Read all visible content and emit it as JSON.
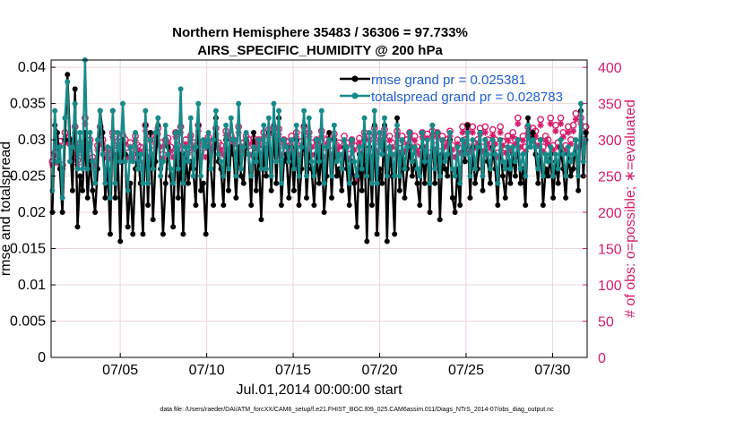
{
  "chart_data": {
    "type": "line",
    "title_line1": "Northern Hemisphere 35483 / 36306 = 97.733%",
    "title_line2": "AIRS_SPECIFIC_HUMIDITY @ 200 hPa",
    "xlabel": "Jul.01,2014 00:00:00 start",
    "ylabel_left": "rmse and totalspread",
    "ylabel_right": "# of obs: o=possible; ∗=evaluated",
    "x_ticks": [
      "07/05",
      "07/10",
      "07/15",
      "07/20",
      "07/25",
      "07/30"
    ],
    "x_tick_days": [
      5,
      10,
      15,
      20,
      25,
      30
    ],
    "xlim": [
      1,
      32
    ],
    "ylim_left": [
      0,
      0.041
    ],
    "ylim_right": [
      0,
      410
    ],
    "y_ticks_left": [
      "0",
      "0.005",
      "0.01",
      "0.015",
      "0.02",
      "0.025",
      "0.03",
      "0.035",
      "0.04"
    ],
    "y_ticks_right": [
      "0",
      "50",
      "100",
      "150",
      "200",
      "250",
      "300",
      "350",
      "400"
    ],
    "colors": {
      "rmse": "#000000",
      "spread": "#178a8a",
      "obs": "#d61c6b",
      "grid": "#eed4da",
      "legend_text": "#1f5fd1"
    },
    "series": [
      {
        "name": "rmse grand pr = 0.025381",
        "axis": "left",
        "values": [
          0.02,
          0.032,
          0.031,
          0.026,
          0.02,
          0.03,
          0.039,
          0.03,
          0.023,
          0.037,
          0.018,
          0.025,
          0.023,
          0.031,
          0.022,
          0.027,
          0.023,
          0.02,
          0.026,
          0.034,
          0.031,
          0.022,
          0.026,
          0.017,
          0.034,
          0.022,
          0.028,
          0.016,
          0.03,
          0.028,
          0.018,
          0.024,
          0.017,
          0.026,
          0.028,
          0.024,
          0.017,
          0.032,
          0.021,
          0.031,
          0.019,
          0.027,
          0.032,
          0.026,
          0.017,
          0.024,
          0.029,
          0.025,
          0.018,
          0.031,
          0.022,
          0.028,
          0.017,
          0.028,
          0.024,
          0.027,
          0.026,
          0.021,
          0.032,
          0.023,
          0.024,
          0.017,
          0.029,
          0.026,
          0.021,
          0.033,
          0.027,
          0.026,
          0.021,
          0.03,
          0.023,
          0.029,
          0.028,
          0.022,
          0.029,
          0.025,
          0.024,
          0.03,
          0.028,
          0.021,
          0.031,
          0.023,
          0.028,
          0.019,
          0.029,
          0.025,
          0.031,
          0.023,
          0.032,
          0.024,
          0.033,
          0.021,
          0.027,
          0.028,
          0.022,
          0.029,
          0.023,
          0.03,
          0.021,
          0.026,
          0.032,
          0.022,
          0.028,
          0.026,
          0.021,
          0.028,
          0.024,
          0.029,
          0.02,
          0.025,
          0.031,
          0.022,
          0.03,
          0.025,
          0.026,
          0.023,
          0.029,
          0.026,
          0.021,
          0.027,
          0.024,
          0.018,
          0.028,
          0.023,
          0.03,
          0.016,
          0.029,
          0.021,
          0.032,
          0.017,
          0.026,
          0.024,
          0.032,
          0.016,
          0.029,
          0.025,
          0.017,
          0.033,
          0.023,
          0.028,
          0.022,
          0.026,
          0.029,
          0.025,
          0.027,
          0.024,
          0.021,
          0.029,
          0.024,
          0.03,
          0.02,
          0.032,
          0.024,
          0.031,
          0.019,
          0.028,
          0.026,
          0.025,
          0.03,
          0.022,
          0.02,
          0.026,
          0.021,
          0.03,
          0.027,
          0.032,
          0.022,
          0.029,
          0.024,
          0.026,
          0.031,
          0.023,
          0.03,
          0.027,
          0.024,
          0.029,
          0.026,
          0.021,
          0.03,
          0.025,
          0.022,
          0.027,
          0.024,
          0.028,
          0.025,
          0.03,
          0.024,
          0.026,
          0.021,
          0.033,
          0.029,
          0.031,
          0.028,
          0.024,
          0.03,
          0.021,
          0.026,
          0.025,
          0.028,
          0.022,
          0.027,
          0.024,
          0.029,
          0.026,
          0.022,
          0.028,
          0.025,
          0.026,
          0.03,
          0.023,
          0.034,
          0.025,
          0.031
        ]
      },
      {
        "name": "totalspread grand pr = 0.028783",
        "axis": "left",
        "values": [
          0.023,
          0.034,
          0.027,
          0.029,
          0.022,
          0.033,
          0.038,
          0.027,
          0.029,
          0.035,
          0.026,
          0.031,
          0.026,
          0.041,
          0.026,
          0.031,
          0.027,
          0.024,
          0.03,
          0.034,
          0.028,
          0.024,
          0.029,
          0.022,
          0.034,
          0.024,
          0.031,
          0.027,
          0.035,
          0.027,
          0.023,
          0.029,
          0.027,
          0.031,
          0.026,
          0.028,
          0.024,
          0.034,
          0.024,
          0.03,
          0.026,
          0.031,
          0.033,
          0.025,
          0.027,
          0.032,
          0.028,
          0.026,
          0.024,
          0.031,
          0.026,
          0.037,
          0.024,
          0.029,
          0.027,
          0.033,
          0.025,
          0.029,
          0.035,
          0.025,
          0.03,
          0.029,
          0.031,
          0.026,
          0.03,
          0.034,
          0.028,
          0.027,
          0.025,
          0.032,
          0.026,
          0.033,
          0.03,
          0.025,
          0.035,
          0.026,
          0.029,
          0.031,
          0.028,
          0.025,
          0.029,
          0.027,
          0.03,
          0.026,
          0.032,
          0.026,
          0.033,
          0.025,
          0.035,
          0.027,
          0.034,
          0.024,
          0.03,
          0.029,
          0.027,
          0.03,
          0.026,
          0.032,
          0.025,
          0.029,
          0.034,
          0.025,
          0.033,
          0.027,
          0.025,
          0.03,
          0.027,
          0.034,
          0.024,
          0.029,
          0.03,
          0.025,
          0.032,
          0.027,
          0.028,
          0.026,
          0.03,
          0.029,
          0.024,
          0.03,
          0.027,
          0.025,
          0.029,
          0.026,
          0.033,
          0.025,
          0.031,
          0.024,
          0.034,
          0.024,
          0.031,
          0.028,
          0.033,
          0.025,
          0.029,
          0.028,
          0.025,
          0.032,
          0.025,
          0.03,
          0.026,
          0.029,
          0.031,
          0.027,
          0.029,
          0.026,
          0.025,
          0.031,
          0.027,
          0.03,
          0.024,
          0.032,
          0.026,
          0.031,
          0.025,
          0.03,
          0.027,
          0.028,
          0.031,
          0.026,
          0.025,
          0.029,
          0.024,
          0.03,
          0.028,
          0.031,
          0.025,
          0.03,
          0.026,
          0.029,
          0.031,
          0.025,
          0.03,
          0.028,
          0.026,
          0.03,
          0.028,
          0.024,
          0.03,
          0.027,
          0.026,
          0.029,
          0.026,
          0.029,
          0.027,
          0.03,
          0.026,
          0.028,
          0.025,
          0.032,
          0.029,
          0.03,
          0.029,
          0.026,
          0.03,
          0.025,
          0.028,
          0.027,
          0.029,
          0.025,
          0.028,
          0.026,
          0.03,
          0.028,
          0.025,
          0.029,
          0.027,
          0.028,
          0.03,
          0.025,
          0.035,
          0.027,
          0.03
        ]
      }
    ],
    "obs_possible": [
      270,
      282,
      275,
      298,
      265,
      310,
      302,
      300,
      280,
      318,
      272,
      295,
      285,
      330,
      290,
      300,
      276,
      270,
      292,
      318,
      300,
      282,
      288,
      280,
      310,
      285,
      298,
      276,
      306,
      300,
      282,
      296,
      280,
      305,
      292,
      290,
      274,
      320,
      282,
      305,
      285,
      300,
      316,
      296,
      280,
      300,
      302,
      290,
      282,
      310,
      292,
      318,
      280,
      300,
      288,
      306,
      296,
      292,
      320,
      282,
      298,
      282,
      304,
      290,
      296,
      316,
      296,
      292,
      285,
      312,
      285,
      306,
      300,
      288,
      318,
      290,
      296,
      305,
      300,
      285,
      302,
      295,
      300,
      286,
      310,
      292,
      314,
      285,
      316,
      292,
      315,
      285,
      300,
      298,
      290,
      305,
      290,
      310,
      285,
      298,
      318,
      285,
      310,
      296,
      285,
      300,
      292,
      312,
      282,
      300,
      305,
      285,
      308,
      292,
      296,
      285,
      305,
      296,
      280,
      300,
      292,
      250,
      302,
      288,
      310,
      282,
      305,
      282,
      316,
      290,
      305,
      296,
      314,
      282,
      305,
      296,
      285,
      312,
      288,
      305,
      290,
      300,
      310,
      296,
      305,
      290,
      285,
      310,
      296,
      308,
      282,
      312,
      292,
      310,
      284,
      305,
      296,
      300,
      312,
      292,
      282,
      300,
      288,
      318,
      300,
      320,
      290,
      318,
      295,
      300,
      316,
      290,
      318,
      300,
      294,
      314,
      300,
      282,
      318,
      298,
      288,
      305,
      292,
      310,
      300,
      330,
      296,
      305,
      290,
      318,
      310,
      316,
      312,
      298,
      328,
      290,
      305,
      300,
      330,
      292,
      320,
      296,
      330,
      310,
      292,
      318,
      300,
      320,
      336,
      296,
      330,
      300,
      318
    ],
    "obs_evaluated": [
      265,
      278,
      268,
      292,
      260,
      302,
      296,
      294,
      274,
      310,
      266,
      288,
      279,
      322,
      284,
      294,
      270,
      264,
      286,
      310,
      294,
      276,
      282,
      274,
      304,
      279,
      292,
      270,
      300,
      294,
      276,
      290,
      274,
      299,
      286,
      284,
      268,
      312,
      276,
      299,
      279,
      294,
      308,
      290,
      274,
      294,
      296,
      284,
      276,
      304,
      286,
      310,
      274,
      294,
      282,
      300,
      290,
      286,
      312,
      276,
      292,
      276,
      298,
      284,
      290,
      308,
      290,
      286,
      279,
      306,
      279,
      300,
      294,
      282,
      310,
      284,
      290,
      299,
      294,
      279,
      296,
      289,
      294,
      280,
      304,
      286,
      306,
      279,
      308,
      286,
      307,
      279,
      294,
      292,
      284,
      299,
      284,
      304,
      279,
      292,
      310,
      279,
      304,
      290,
      279,
      294,
      286,
      305,
      276,
      294,
      299,
      279,
      302,
      286,
      290,
      279,
      299,
      290,
      274,
      294,
      286,
      244,
      296,
      282,
      304,
      276,
      299,
      276,
      308,
      284,
      299,
      290,
      306,
      276,
      299,
      290,
      279,
      305,
      282,
      299,
      284,
      294,
      304,
      290,
      299,
      284,
      279,
      304,
      290,
      302,
      276,
      305,
      286,
      304,
      278,
      299,
      290,
      294,
      305,
      286,
      276,
      294,
      282,
      310,
      294,
      312,
      284,
      310,
      289,
      294,
      308,
      284,
      310,
      294,
      288,
      306,
      294,
      276,
      310,
      292,
      282,
      299,
      286,
      304,
      294,
      322,
      290,
      299,
      284,
      310,
      304,
      308,
      305,
      292,
      320,
      284,
      299,
      294,
      322,
      286,
      312,
      290,
      322,
      304,
      286,
      310,
      294,
      312,
      328,
      290,
      322,
      294,
      310
    ]
  },
  "footer": "data file: /Users/raeder/DAI/ATM_forcXX/CAM6_setup/f.e21.FHIST_BGC.f09_025.CAM6assim.011/Diags_NTrS_2014-07/obs_diag_output.nc"
}
